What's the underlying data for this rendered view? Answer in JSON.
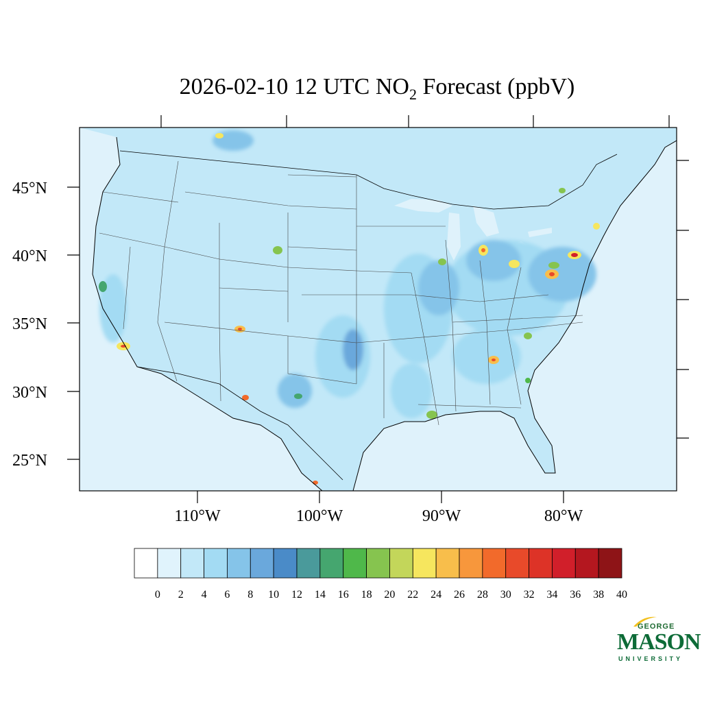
{
  "title": {
    "prefix": "2026-02-10 12 UTC NO",
    "subscript": "2",
    "suffix": " Forecast (ppbV)"
  },
  "lat_labels": [
    "45°N",
    "40°N",
    "35°N",
    "30°N",
    "25°N"
  ],
  "lon_labels": [
    "110°W",
    "100°W",
    "90°W",
    "80°W"
  ],
  "colorbar": {
    "labels": [
      "0",
      "2",
      "4",
      "6",
      "8",
      "10",
      "12",
      "14",
      "16",
      "18",
      "20",
      "22",
      "24",
      "26",
      "28",
      "30",
      "32",
      "34",
      "36",
      "38",
      "40"
    ],
    "colors": [
      "#ffffff",
      "#e0f3fc",
      "#c2e8f8",
      "#a3dbf3",
      "#85c4e9",
      "#6aa8dc",
      "#4a8bc8",
      "#4a9a9b",
      "#45a66f",
      "#4fb84a",
      "#86c44f",
      "#c3d65a",
      "#f6e65e",
      "#f8be4b",
      "#f7973c",
      "#f26a2b",
      "#e84a2a",
      "#dd3327",
      "#d11f2a",
      "#b4171f",
      "#8e1417"
    ]
  },
  "map": {
    "ocean_color": "#dff2fb",
    "land_color": "#c2e8f8"
  },
  "logo": {
    "line1": "GEORGE",
    "line2": "MASON",
    "line3": "UNIVERSITY"
  }
}
